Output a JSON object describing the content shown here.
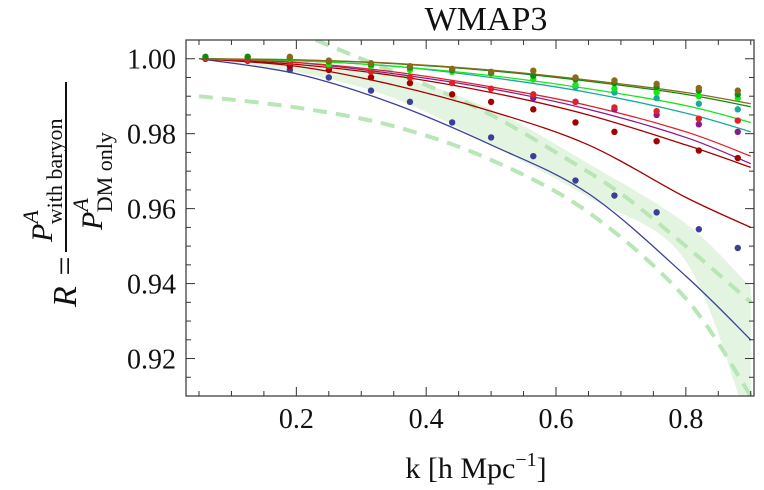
{
  "chart_data": {
    "type": "line",
    "title": "WMAP3",
    "xlabel": "k [h Mpc",
    "xlabel_sup": "−1",
    "xlabel_close": "]",
    "ylabel": {
      "lhs": "R =",
      "num_base": "P",
      "num_sup": "A",
      "num_sub": "with baryon",
      "den_base": "P",
      "den_sup": "A",
      "den_sub": "DM only"
    },
    "xlim": [
      0.03,
      0.905
    ],
    "ylim": [
      0.91,
      1.005
    ],
    "xticks": [
      0.2,
      0.4,
      0.6,
      0.8
    ],
    "xtick_labels": [
      "0.2",
      "0.4",
      "0.6",
      "0.8"
    ],
    "yticks": [
      0.92,
      0.94,
      0.96,
      0.98,
      1.0
    ],
    "ytick_labels": [
      "0.92",
      "0.94",
      "0.96",
      "0.98",
      "1.00"
    ],
    "band": {
      "color": "#e3f4e1",
      "x": [
        0.05,
        0.2,
        0.35,
        0.5,
        0.65,
        0.8,
        0.9
      ],
      "lower": [
        1.0,
        0.9965,
        0.9895,
        0.977,
        0.963,
        0.946,
        0.9
      ],
      "upper": [
        1.0,
        0.9995,
        0.9955,
        0.9865,
        0.972,
        0.956,
        0.939
      ]
    },
    "dashed": [
      {
        "color": "#b8e6b5",
        "x": [
          0.05,
          0.2,
          0.35,
          0.5,
          0.65,
          0.8,
          0.9
        ],
        "y": [
          0.99,
          0.987,
          0.982,
          0.973,
          0.959,
          0.936,
          0.91
        ]
      },
      {
        "color": "#b8e6b5",
        "x": [
          0.23,
          0.3,
          0.4,
          0.5,
          0.6,
          0.7,
          0.8,
          0.9
        ],
        "y": [
          1.005,
          1.0,
          0.993,
          0.985,
          0.975,
          0.964,
          0.95,
          0.935
        ]
      }
    ],
    "series": [
      {
        "color": "#3b3f9a",
        "x": [
          0.05,
          0.2,
          0.35,
          0.5,
          0.65,
          0.8,
          0.9
        ],
        "y": [
          1.0,
          0.996,
          0.988,
          0.977,
          0.964,
          0.942,
          0.925
        ]
      },
      {
        "color": "#a50000",
        "x": [
          0.05,
          0.2,
          0.35,
          0.5,
          0.65,
          0.8,
          0.9
        ],
        "y": [
          1.0,
          0.998,
          0.993,
          0.986,
          0.977,
          0.963,
          0.955
        ]
      },
      {
        "color": "#a50000",
        "x": [
          0.05,
          0.2,
          0.35,
          0.5,
          0.65,
          0.8,
          0.9
        ],
        "y": [
          1.0,
          0.9985,
          0.9955,
          0.991,
          0.985,
          0.977,
          0.971
        ]
      },
      {
        "color": "#8a1a8a",
        "x": [
          0.05,
          0.2,
          0.35,
          0.5,
          0.65,
          0.8,
          0.9
        ],
        "y": [
          1.0,
          0.999,
          0.996,
          0.992,
          0.9865,
          0.979,
          0.972
        ]
      },
      {
        "color": "#e0202a",
        "x": [
          0.05,
          0.2,
          0.35,
          0.5,
          0.65,
          0.8,
          0.9
        ],
        "y": [
          1.0,
          0.999,
          0.9965,
          0.9925,
          0.9875,
          0.9805,
          0.974
        ]
      },
      {
        "color": "#1aa8a0",
        "x": [
          0.05,
          0.2,
          0.35,
          0.5,
          0.65,
          0.8,
          0.9
        ],
        "y": [
          1.0,
          0.9995,
          0.998,
          0.995,
          0.991,
          0.9855,
          0.9805
        ]
      },
      {
        "color": "#19e619",
        "x": [
          0.05,
          0.2,
          0.35,
          0.5,
          0.65,
          0.8,
          0.9
        ],
        "y": [
          1.0,
          0.9995,
          0.998,
          0.9955,
          0.992,
          0.9875,
          0.983
        ]
      },
      {
        "color": "#0f8a0f",
        "x": [
          0.05,
          0.2,
          0.35,
          0.5,
          0.65,
          0.8,
          0.9
        ],
        "y": [
          1.0,
          0.9997,
          0.9987,
          0.9968,
          0.994,
          0.9905,
          0.9872
        ]
      },
      {
        "color": "#8a6a1a",
        "x": [
          0.05,
          0.2,
          0.35,
          0.5,
          0.65,
          0.8,
          0.9
        ],
        "y": [
          1.0,
          0.9997,
          0.9988,
          0.997,
          0.9943,
          0.991,
          0.988
        ]
      }
    ],
    "points": [
      {
        "color": "#3b3f9a",
        "x": [
          0.06,
          0.125,
          0.19,
          0.25,
          0.315,
          0.375,
          0.44,
          0.5,
          0.565,
          0.63,
          0.69,
          0.755,
          0.82,
          0.88
        ],
        "y": [
          1.0,
          0.9995,
          0.997,
          0.995,
          0.9915,
          0.9885,
          0.983,
          0.979,
          0.974,
          0.9675,
          0.9635,
          0.959,
          0.9545,
          0.9495
        ]
      },
      {
        "color": "#a50000",
        "x": [
          0.06,
          0.125,
          0.19,
          0.25,
          0.315,
          0.375,
          0.44,
          0.5,
          0.565,
          0.63,
          0.69,
          0.755,
          0.82,
          0.88
        ],
        "y": [
          1.0,
          0.9995,
          0.998,
          0.997,
          0.995,
          0.9935,
          0.9905,
          0.9885,
          0.9865,
          0.983,
          0.9805,
          0.978,
          0.9755,
          0.9735
        ]
      },
      {
        "color": "#8a1a8a",
        "x": [
          0.565,
          0.63,
          0.69,
          0.755,
          0.82,
          0.88
        ],
        "y": [
          0.9895,
          0.9885,
          0.9865,
          0.985,
          0.9825,
          0.9805
        ]
      },
      {
        "color": "#e0202a",
        "x": [
          0.06,
          0.125,
          0.19,
          0.25,
          0.315,
          0.375,
          0.44,
          0.5,
          0.565,
          0.63,
          0.69,
          0.755,
          0.82,
          0.88
        ],
        "y": [
          1.0,
          0.9997,
          0.999,
          0.998,
          0.9965,
          0.995,
          0.9935,
          0.992,
          0.9905,
          0.9885,
          0.987,
          0.986,
          0.984,
          0.9835
        ]
      },
      {
        "color": "#1aa8a0",
        "x": [
          0.63,
          0.69,
          0.755,
          0.82,
          0.88
        ],
        "y": [
          0.9925,
          0.991,
          0.9895,
          0.988,
          0.9865
        ]
      },
      {
        "color": "#19e619",
        "x": [
          0.06,
          0.125,
          0.19,
          0.25,
          0.315,
          0.375,
          0.44,
          0.5,
          0.565,
          0.63,
          0.69,
          0.755,
          0.82,
          0.88
        ],
        "y": [
          1.0005,
          1.0005,
          1.0,
          0.9985,
          0.998,
          0.997,
          0.9965,
          0.996,
          0.9945,
          0.993,
          0.992,
          0.991,
          0.99,
          0.9895
        ]
      },
      {
        "color": "#0f8a0f",
        "x": [
          0.06,
          0.125,
          0.19,
          0.25,
          0.315,
          0.375,
          0.44,
          0.5,
          0.565,
          0.63,
          0.69,
          0.755,
          0.82,
          0.88
        ],
        "y": [
          1.0005,
          1.0005,
          1.0003,
          0.9993,
          0.9985,
          0.9977,
          0.997,
          0.9963,
          0.9955,
          0.9945,
          0.9935,
          0.9925,
          0.9915,
          0.9905
        ]
      },
      {
        "color": "#8a6a1a",
        "x": [
          0.19,
          0.25,
          0.315,
          0.375,
          0.44,
          0.5,
          0.565,
          0.63,
          0.69,
          0.755,
          0.82,
          0.88
        ],
        "y": [
          1.0005,
          0.9995,
          0.9988,
          0.998,
          0.9973,
          0.9965,
          0.9968,
          0.995,
          0.9942,
          0.9933,
          0.9922,
          0.9915
        ]
      }
    ]
  }
}
